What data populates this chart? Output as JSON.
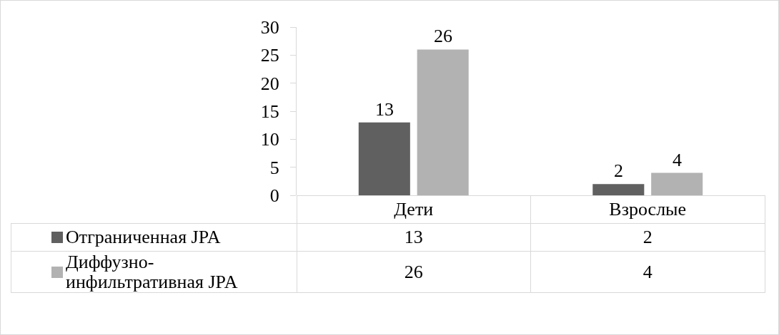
{
  "chart_data": {
    "type": "bar",
    "categories": [
      "Дети",
      "Взрослые"
    ],
    "series": [
      {
        "name": "Отграниченная JPA",
        "color": "#606060",
        "values": [
          13,
          2
        ]
      },
      {
        "name": "Диффузно-инфильтративная JPA",
        "color": "#b2b2b2",
        "values": [
          26,
          4
        ]
      }
    ],
    "annotations": [
      {
        "text": "13",
        "x": "Дети",
        "y": 13
      },
      {
        "text": "2",
        "x": "Взрослые",
        "y": 2
      },
      {
        "text": "26",
        "x": "Дети",
        "y": 26
      },
      {
        "text": "4",
        "x": "Взрослые",
        "y": 4
      }
    ],
    "ylim": [
      0,
      30
    ],
    "yticks": [
      0,
      5,
      10,
      15,
      20,
      25,
      30
    ],
    "grid": false,
    "legend": "bottom",
    "data_labels": true
  }
}
